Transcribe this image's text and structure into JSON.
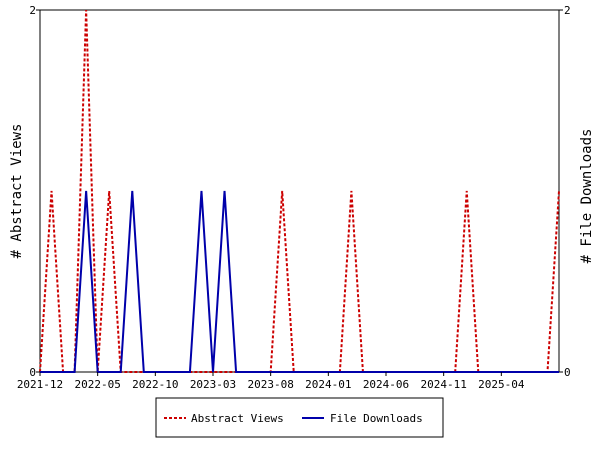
{
  "chart_data": {
    "type": "line",
    "x": [
      "2021-12",
      "2022-01",
      "2022-02",
      "2022-03",
      "2022-04",
      "2022-05",
      "2022-06",
      "2022-07",
      "2022-08",
      "2022-09",
      "2022-10",
      "2022-11",
      "2022-12",
      "2023-01",
      "2023-02",
      "2023-03",
      "2023-04",
      "2023-05",
      "2023-06",
      "2023-07",
      "2023-08",
      "2023-09",
      "2023-10",
      "2023-11",
      "2023-12",
      "2024-01",
      "2024-02",
      "2024-03",
      "2024-04",
      "2024-05",
      "2024-06",
      "2024-07",
      "2024-08",
      "2024-09",
      "2024-10",
      "2024-11",
      "2024-12",
      "2025-01",
      "2025-02",
      "2025-03",
      "2025-04",
      "2025-05",
      "2025-06",
      "2025-07",
      "2025-08",
      "2025-09"
    ],
    "x_ticks": [
      "2021-12",
      "2022-05",
      "2022-10",
      "2023-03",
      "2023-08",
      "2024-01",
      "2024-06",
      "2024-11",
      "2025-04"
    ],
    "y_left": {
      "label": "# Abstract Views",
      "range": [
        0,
        2
      ],
      "ticks": [
        "0",
        "2"
      ]
    },
    "y_right": {
      "label": "# File Downloads",
      "range": [
        0,
        2
      ],
      "ticks": [
        "0",
        "2"
      ]
    },
    "series": [
      {
        "name": "Abstract Views",
        "color": "#cc0000",
        "dash": "dashed",
        "axis": "left",
        "values": [
          0,
          1,
          0,
          0,
          2,
          0,
          1,
          0,
          0,
          0,
          0,
          0,
          0,
          0,
          0,
          0,
          0,
          0,
          0,
          0,
          0,
          1,
          0,
          0,
          0,
          0,
          0,
          1,
          0,
          0,
          0,
          0,
          0,
          0,
          0,
          0,
          0,
          1,
          0,
          0,
          0,
          0,
          0,
          0,
          0,
          1
        ]
      },
      {
        "name": "File Downloads",
        "color": "#0000aa",
        "dash": "solid",
        "axis": "right",
        "values": [
          0,
          0,
          0,
          0,
          1,
          0,
          0,
          0,
          1,
          0,
          0,
          0,
          0,
          0,
          1,
          0,
          1,
          0,
          0,
          0,
          0,
          0,
          0,
          0,
          0,
          0,
          0,
          0,
          0,
          0,
          0,
          0,
          0,
          0,
          0,
          0,
          0,
          0,
          0,
          0,
          0,
          0,
          0,
          0,
          0,
          0
        ]
      }
    ],
    "legend": {
      "position": "bottom",
      "items": [
        "Abstract Views",
        "File Downloads"
      ]
    },
    "grid": false
  }
}
